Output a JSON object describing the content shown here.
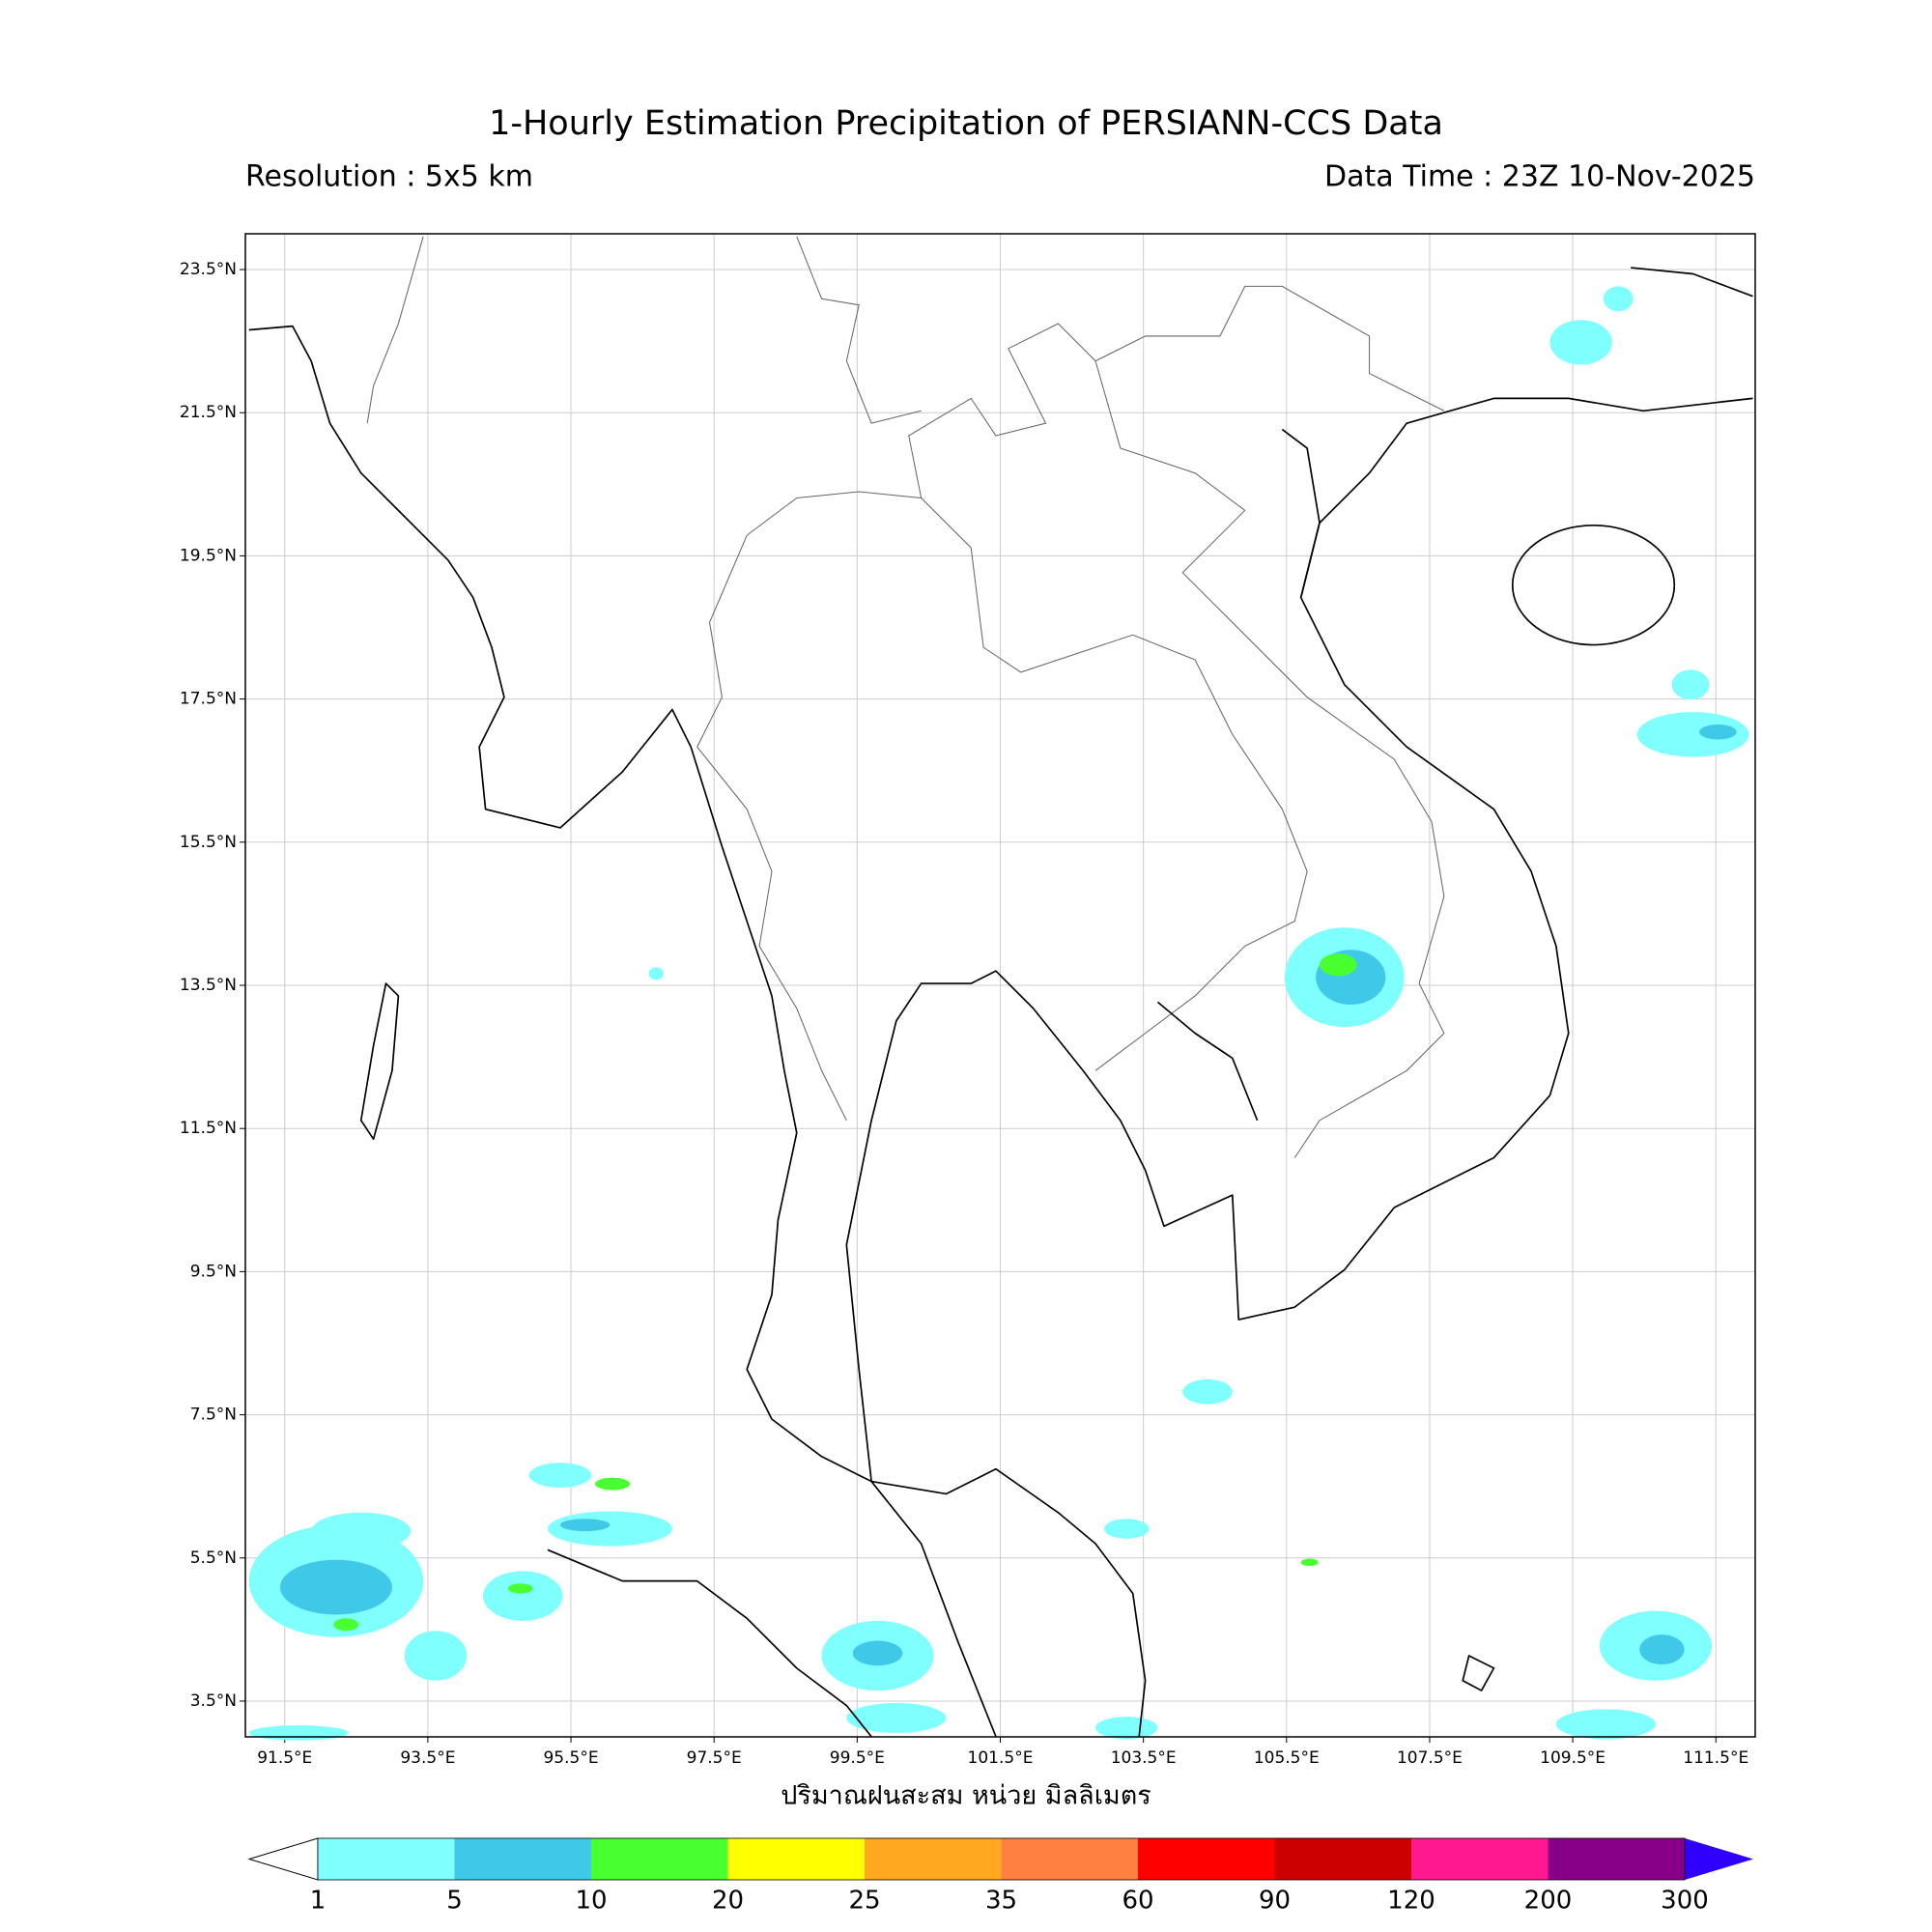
{
  "chart_data": {
    "type": "map",
    "title": "1-Hourly Estimation Precipitation of PERSIANN-CCS Data",
    "subtitle_left": "Resolution : 5x5 km",
    "subtitle_right": "Data Time : 23Z 10-Nov-2025",
    "xlim": [
      90.95,
      112.05
    ],
    "ylim": [
      3.0,
      24.0
    ],
    "xticks": [
      {
        "value": 91.5,
        "label": "91.5°E"
      },
      {
        "value": 93.5,
        "label": "93.5°E"
      },
      {
        "value": 95.5,
        "label": "95.5°E"
      },
      {
        "value": 97.5,
        "label": "97.5°E"
      },
      {
        "value": 99.5,
        "label": "99.5°E"
      },
      {
        "value": 101.5,
        "label": "101.5°E"
      },
      {
        "value": 103.5,
        "label": "103.5°E"
      },
      {
        "value": 105.5,
        "label": "105.5°E"
      },
      {
        "value": 107.5,
        "label": "107.5°E"
      },
      {
        "value": 109.5,
        "label": "109.5°E"
      },
      {
        "value": 111.5,
        "label": "111.5°E"
      }
    ],
    "yticks": [
      {
        "value": 3.5,
        "label": "3.5°N"
      },
      {
        "value": 5.5,
        "label": "5.5°N"
      },
      {
        "value": 7.5,
        "label": "7.5°N"
      },
      {
        "value": 9.5,
        "label": "9.5°N"
      },
      {
        "value": 11.5,
        "label": "11.5°N"
      },
      {
        "value": 13.5,
        "label": "13.5°N"
      },
      {
        "value": 15.5,
        "label": "15.5°N"
      },
      {
        "value": 17.5,
        "label": "17.5°N"
      },
      {
        "value": 19.5,
        "label": "19.5°N"
      },
      {
        "value": 21.5,
        "label": "21.5°N"
      },
      {
        "value": 23.5,
        "label": "23.5°N"
      }
    ],
    "grid": true,
    "colorbar": {
      "label": "ปริมาณฝนสะสม หน่วย มิลลิเมตร",
      "levels": [
        1,
        5,
        10,
        20,
        25,
        35,
        60,
        90,
        120,
        200,
        300
      ],
      "colors": [
        "#80ffff",
        "#40c8e8",
        "#48ff30",
        "#ffff00",
        "#ffa820",
        "#ff8040",
        "#ff0000",
        "#cc0000",
        "#ff1890",
        "#880088"
      ],
      "under_color": "#ffffff",
      "over_color": "#3000ff"
    }
  }
}
